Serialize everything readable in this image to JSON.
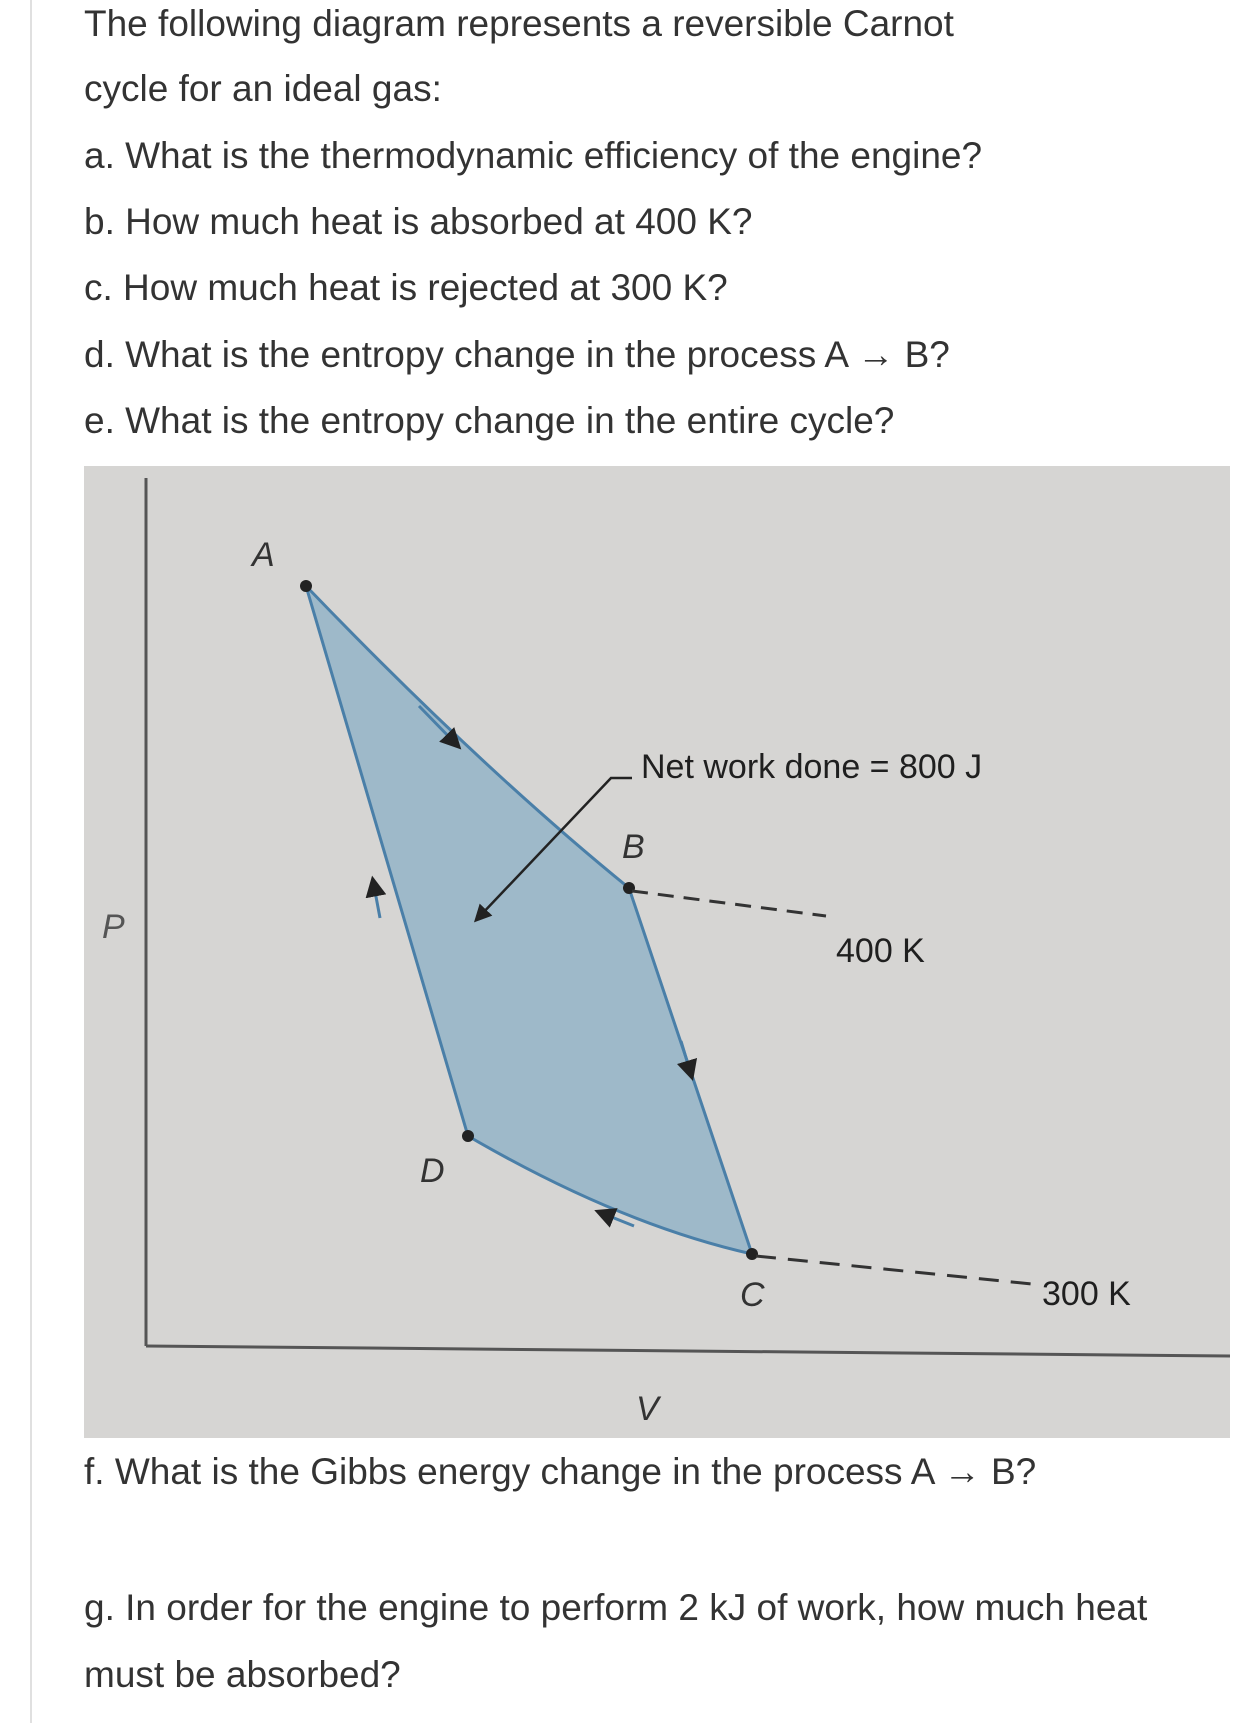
{
  "intro": {
    "line1": "The following diagram represents a reversible Carnot",
    "line2": "cycle for an ideal gas:"
  },
  "questions": {
    "a": "a. What is the thermodynamic efficiency of the engine?",
    "b": "b. How much heat is absorbed at 400 K?",
    "c": "c. How much heat is rejected at 300 K?",
    "d": "d. What is the entropy change in the process A → B?",
    "e": "e. What is the entropy change in the entire cycle?",
    "f": "f. What is the Gibbs energy change in the process A → B?",
    "g": "g. In order for the engine to perform 2 kJ of work, how much heat must be absorbed?"
  },
  "diagram": {
    "y_axis_label": "P",
    "x_axis_label": "V",
    "points": {
      "A": "A",
      "B": "B",
      "C": "C",
      "D": "D"
    },
    "annotation": "Net work done = 800 J",
    "isotherm_hot": "400 K",
    "isotherm_cold": "300 K",
    "colors": {
      "background": "#d6d5d3",
      "fill": "#9eb9c9",
      "line": "#4a7fa8"
    }
  }
}
